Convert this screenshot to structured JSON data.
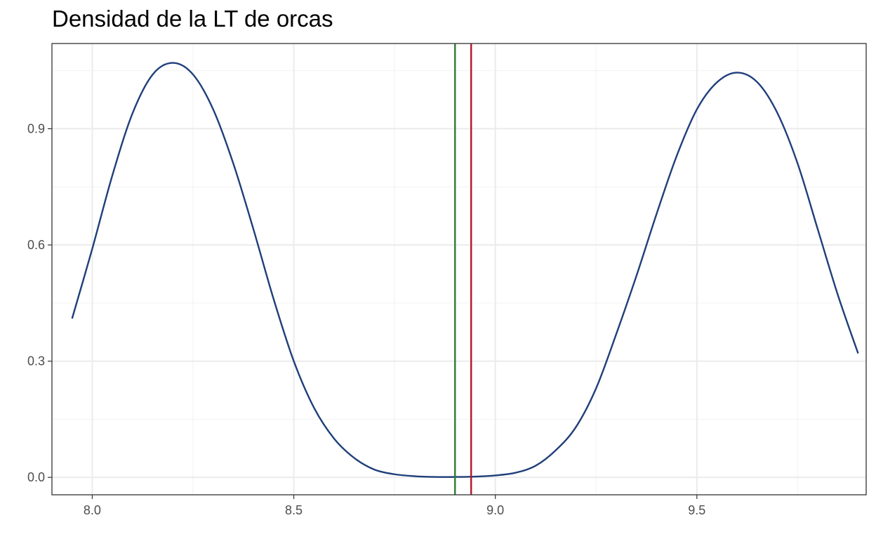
{
  "chart_data": {
    "type": "line",
    "title": "Densidad de la LT de orcas",
    "xlabel": "",
    "ylabel": "",
    "xlim": [
      7.9,
      9.92
    ],
    "ylim": [
      -0.045,
      1.12
    ],
    "x_ticks": [
      8.0,
      8.5,
      9.0,
      9.5
    ],
    "x_tick_labels": [
      "8.0",
      "8.5",
      "9.0",
      "9.5"
    ],
    "y_ticks": [
      0.0,
      0.3,
      0.6,
      0.9
    ],
    "y_tick_labels": [
      "0.0",
      "0.3",
      "0.6",
      "0.9"
    ],
    "x_minor_ticks": [
      7.75,
      8.25,
      8.75,
      9.25,
      9.75
    ],
    "y_minor_ticks": [
      0.15,
      0.45,
      0.75,
      1.05
    ],
    "grid": true,
    "series": [
      {
        "color": "#1f3f7a",
        "x": [
          7.95,
          8.0,
          8.05,
          8.1,
          8.15,
          8.2,
          8.25,
          8.3,
          8.35,
          8.4,
          8.45,
          8.5,
          8.55,
          8.6,
          8.65,
          8.7,
          8.75,
          8.8,
          8.85,
          8.9,
          8.95,
          9.0,
          9.05,
          9.1,
          9.15,
          9.2,
          9.25,
          9.3,
          9.35,
          9.4,
          9.45,
          9.5,
          9.55,
          9.6,
          9.65,
          9.7,
          9.75,
          9.8,
          9.85,
          9.9
        ],
        "values": [
          0.41,
          0.59,
          0.78,
          0.94,
          1.04,
          1.07,
          1.04,
          0.95,
          0.81,
          0.64,
          0.46,
          0.3,
          0.18,
          0.1,
          0.05,
          0.02,
          0.008,
          0.003,
          0.001,
          0.001,
          0.002,
          0.005,
          0.012,
          0.03,
          0.07,
          0.13,
          0.23,
          0.37,
          0.52,
          0.68,
          0.83,
          0.95,
          1.02,
          1.045,
          1.02,
          0.94,
          0.81,
          0.64,
          0.47,
          0.32
        ]
      }
    ],
    "vlines": [
      {
        "x": 8.9,
        "color": "#2e7d32"
      },
      {
        "x": 8.94,
        "color": "#b2182b"
      }
    ],
    "colors": {
      "background": "#ffffff",
      "panel_border": "#333333",
      "grid_major": "#ebebeb",
      "grid_minor": "#f2f2f2",
      "tick_text": "#4d4d4d"
    }
  }
}
